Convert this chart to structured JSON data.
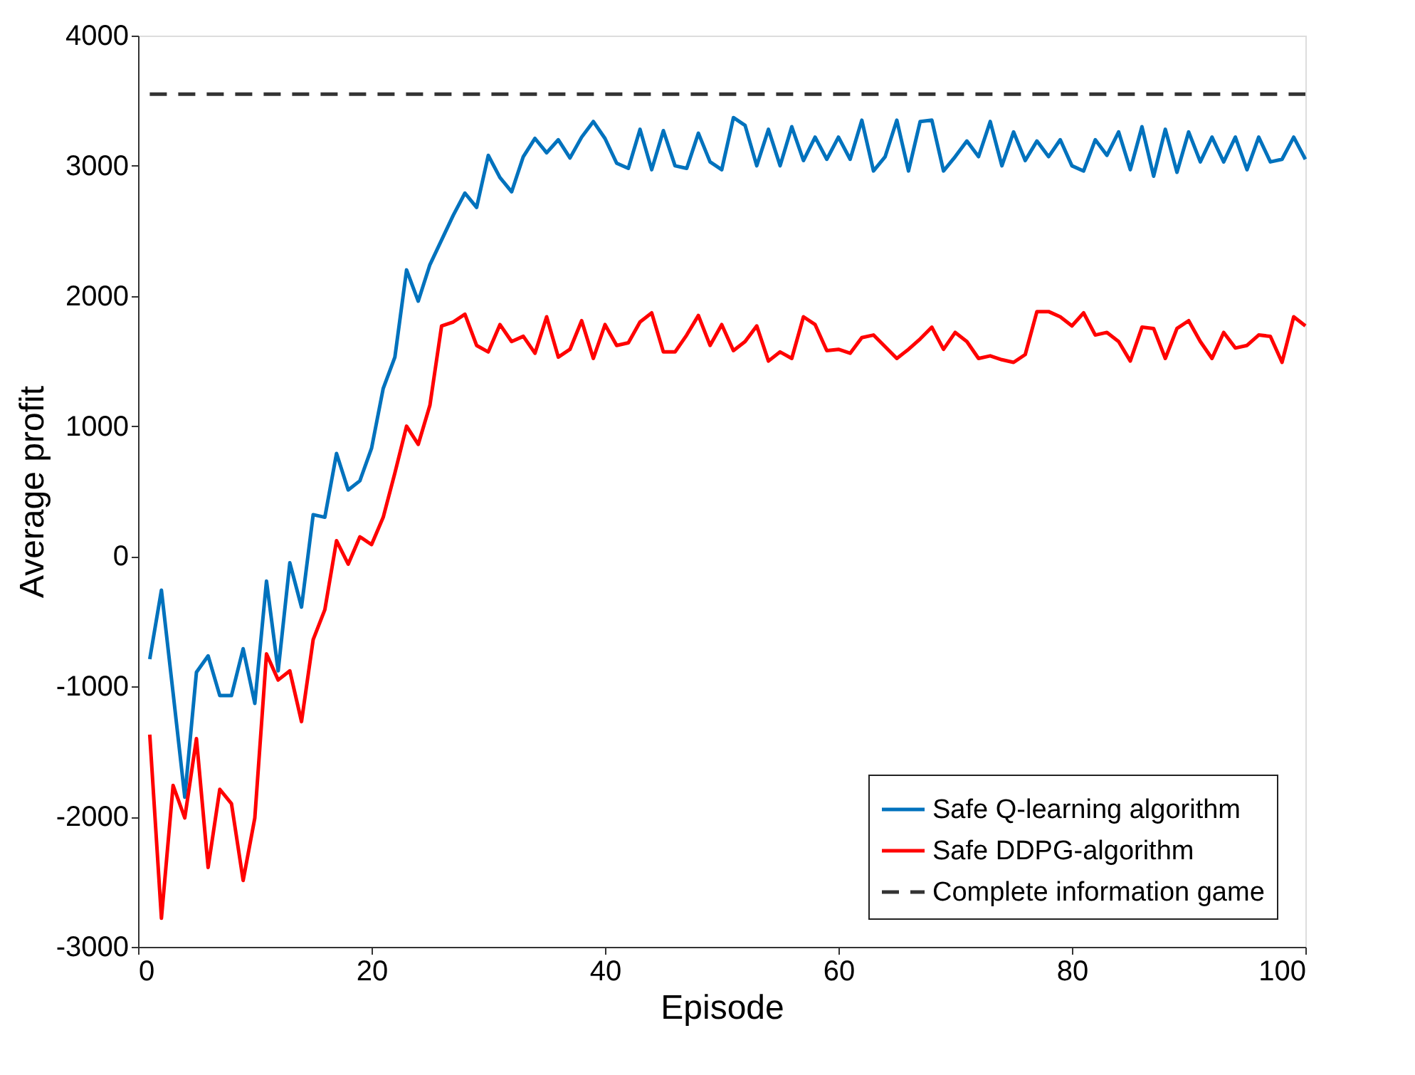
{
  "chart_data": {
    "type": "line",
    "xlabel": "Episode",
    "ylabel": "Average profit",
    "x": [
      1,
      2,
      3,
      4,
      5,
      6,
      7,
      8,
      9,
      10,
      11,
      12,
      13,
      14,
      15,
      16,
      17,
      18,
      19,
      20,
      21,
      22,
      23,
      24,
      25,
      26,
      27,
      28,
      29,
      30,
      31,
      32,
      33,
      34,
      35,
      36,
      37,
      38,
      39,
      40,
      41,
      42,
      43,
      44,
      45,
      46,
      47,
      48,
      49,
      50,
      51,
      52,
      53,
      54,
      55,
      56,
      57,
      58,
      59,
      60,
      61,
      62,
      63,
      64,
      65,
      66,
      67,
      68,
      69,
      70,
      71,
      72,
      73,
      74,
      75,
      76,
      77,
      78,
      79,
      80,
      81,
      82,
      83,
      84,
      85,
      86,
      87,
      88,
      89,
      90,
      91,
      92,
      93,
      94,
      95,
      96,
      97,
      98,
      99,
      100
    ],
    "xlim": [
      0,
      100
    ],
    "xticks": [
      0,
      20,
      40,
      60,
      80,
      100
    ],
    "ylim": [
      -3000,
      4000
    ],
    "yticks": [
      -3000,
      -2000,
      -1000,
      0,
      1000,
      2000,
      3000,
      4000
    ],
    "grid": false,
    "legend": "bottom right",
    "marker": "none",
    "series": [
      {
        "name": "Safe Q-learning algorithm",
        "color": "#0072bd",
        "line_style": "solid",
        "values": [
          -790,
          -260,
          -1050,
          -1850,
          -890,
          -765,
          -1070,
          -1070,
          -710,
          -1130,
          -190,
          -880,
          -50,
          -390,
          320,
          300,
          790,
          510,
          580,
          830,
          1290,
          1530,
          2200,
          1960,
          2240,
          2430,
          2620,
          2790,
          2680,
          3080,
          2910,
          2800,
          3070,
          3210,
          3100,
          3200,
          3060,
          3220,
          3340,
          3210,
          3020,
          2980,
          3280,
          2970,
          3270,
          3000,
          2980,
          3250,
          3030,
          2970,
          3370,
          3310,
          3000,
          3280,
          3000,
          3300,
          3040,
          3220,
          3050,
          3220,
          3050,
          3350,
          2960,
          3070,
          3350,
          2960,
          3340,
          3350,
          2960,
          3070,
          3190,
          3070,
          3340,
          3000,
          3260,
          3040,
          3190,
          3070,
          3200,
          3000,
          2960,
          3200,
          3080,
          3260,
          2970,
          3300,
          2920,
          3280,
          2950,
          3260,
          3030,
          3220,
          3030,
          3220,
          2970,
          3220,
          3030,
          3050,
          3220,
          3050
        ]
      },
      {
        "name": "Safe DDPG-algorithm",
        "color": "#ff0000",
        "line_style": "solid",
        "values": [
          -1370,
          -2780,
          -1760,
          -2010,
          -1400,
          -2390,
          -1790,
          -1900,
          -2490,
          -2010,
          -750,
          -950,
          -880,
          -1270,
          -640,
          -410,
          120,
          -60,
          150,
          90,
          300,
          640,
          1000,
          860,
          1160,
          1770,
          1800,
          1860,
          1620,
          1570,
          1780,
          1650,
          1690,
          1560,
          1840,
          1530,
          1590,
          1810,
          1520,
          1780,
          1620,
          1640,
          1800,
          1870,
          1570,
          1570,
          1700,
          1850,
          1620,
          1780,
          1580,
          1650,
          1770,
          1500,
          1570,
          1520,
          1840,
          1780,
          1580,
          1590,
          1560,
          1680,
          1700,
          1610,
          1520,
          1590,
          1670,
          1760,
          1590,
          1720,
          1650,
          1520,
          1540,
          1510,
          1490,
          1550,
          1880,
          1880,
          1840,
          1770,
          1870,
          1700,
          1720,
          1650,
          1500,
          1760,
          1750,
          1520,
          1750,
          1810,
          1650,
          1520,
          1720,
          1600,
          1620,
          1700,
          1690,
          1490,
          1840,
          1770
        ]
      },
      {
        "name": "Complete information game",
        "color": "#333333",
        "line_style": "dashed",
        "x": [
          1,
          100
        ],
        "values": [
          3550,
          3550
        ]
      }
    ]
  }
}
